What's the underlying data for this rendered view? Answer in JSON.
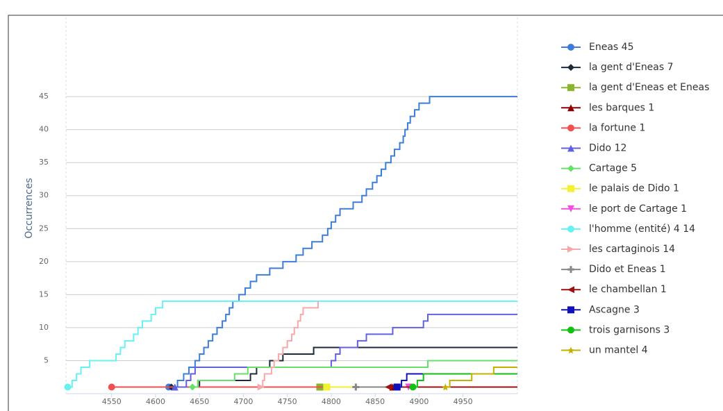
{
  "chart_data": {
    "type": "line",
    "step": true,
    "grid": true,
    "y_label": "Occurrences",
    "xlim": [
      4498,
      5012
    ],
    "ylim": [
      0,
      57
    ],
    "xticks": [
      4550,
      4600,
      4650,
      4700,
      4750,
      4800,
      4850,
      4900,
      4950
    ],
    "yticks": [
      5,
      10,
      15,
      20,
      25,
      30,
      35,
      40,
      45
    ],
    "legend": "right",
    "series": [
      {
        "name": "Eneas 45",
        "color": "#3b7dd8",
        "marker": "circle",
        "x": [
          4615,
          4625,
          4632,
          4638,
          4645,
          4650,
          4655,
          4660,
          4665,
          4670,
          4676,
          4680,
          4684,
          4688,
          4695,
          4702,
          4708,
          4715,
          4730,
          4745,
          4760,
          4768,
          4778,
          4790,
          4796,
          4800,
          4805,
          4810,
          4825,
          4835,
          4840,
          4847,
          4852,
          4857,
          4862,
          4868,
          4872,
          4878,
          4882,
          4884,
          4887,
          4890,
          4895,
          4900,
          4912,
          5012
        ],
        "values": [
          1,
          2,
          3,
          4,
          5,
          6,
          7,
          8,
          9,
          10,
          11,
          12,
          13,
          14,
          15,
          16,
          17,
          18,
          19,
          20,
          21,
          22,
          23,
          24,
          25,
          26,
          27,
          28,
          29,
          30,
          31,
          32,
          33,
          34,
          35,
          36,
          37,
          38,
          39,
          40,
          41,
          42,
          43,
          44,
          45,
          45
        ]
      },
      {
        "name": "la gent d'Eneas 7",
        "color": "#1c2a3b",
        "marker": "diamond",
        "x": [
          4618,
          4650,
          4708,
          4715,
          4730,
          4745,
          4780,
          5012
        ],
        "values": [
          1,
          2,
          3,
          4,
          5,
          6,
          7,
          7
        ]
      },
      {
        "name": "la gent d'Eneas et Eneas",
        "color": "#8ab52a",
        "marker": "square",
        "x": [
          4787,
          5012
        ],
        "values": [
          1,
          1
        ]
      },
      {
        "name": "les barques 1",
        "color": "#8b0000",
        "marker": "triangle",
        "x": [
          4870,
          5012
        ],
        "values": [
          1,
          1
        ]
      },
      {
        "name": "la fortune 1",
        "color": "#f25050",
        "marker": "circle",
        "x": [
          4550,
          4790
        ],
        "values": [
          1,
          1
        ]
      },
      {
        "name": "Dido 12",
        "color": "#6060e0",
        "marker": "triangle",
        "x": [
          4622,
          4635,
          4640,
          4645,
          4800,
          4805,
          4810,
          4830,
          4840,
          4870,
          4905,
          4910,
          5012
        ],
        "values": [
          1,
          2,
          3,
          4,
          5,
          6,
          7,
          8,
          9,
          10,
          11,
          12,
          12
        ]
      },
      {
        "name": "Cartage 5",
        "color": "#66e066",
        "marker": "diamond",
        "x": [
          4642,
          4648,
          4690,
          4705,
          4910,
          5012
        ],
        "values": [
          1,
          2,
          3,
          4,
          5,
          5
        ]
      },
      {
        "name": "le palais de Dido 1",
        "color": "#f2f230",
        "marker": "square",
        "x": [
          4795,
          5012
        ],
        "values": [
          1,
          1
        ]
      },
      {
        "name": "le port de Cartage 1",
        "color": "#f050e0",
        "marker": "triangle-down",
        "x": [
          4888,
          5012
        ],
        "values": [
          1,
          1
        ]
      },
      {
        "name": "l'homme (entité) 4 14",
        "color": "#66f2f2",
        "marker": "circle",
        "x": [
          4500,
          4505,
          4510,
          4515,
          4525,
          4555,
          4560,
          4565,
          4575,
          4580,
          4585,
          4595,
          4600,
          4608,
          5012
        ],
        "values": [
          1,
          2,
          3,
          4,
          5,
          6,
          7,
          8,
          9,
          10,
          11,
          12,
          13,
          14,
          14
        ]
      },
      {
        "name": "les cartaginois 14",
        "color": "#f8a8a8",
        "marker": "triangle-right",
        "x": [
          4720,
          4722,
          4724,
          4732,
          4735,
          4740,
          4745,
          4750,
          4755,
          4758,
          4762,
          4765,
          4768,
          4785
        ],
        "values": [
          1,
          2,
          3,
          4,
          5,
          6,
          7,
          8,
          9,
          10,
          11,
          12,
          13,
          14
        ]
      },
      {
        "name": "Dido et Eneas 1",
        "color": "#888888",
        "marker": "plus",
        "x": [
          4828,
          5012
        ],
        "values": [
          1,
          1
        ]
      },
      {
        "name": "le chambellan 1",
        "color": "#a01010",
        "marker": "triangle-left",
        "x": [
          4865,
          5012
        ],
        "values": [
          1,
          1
        ]
      },
      {
        "name": "Ascagne 3",
        "color": "#1010c0",
        "marker": "square",
        "x": [
          4875,
          4880,
          4886,
          5012
        ],
        "values": [
          1,
          2,
          3,
          3
        ]
      },
      {
        "name": "trois garnisons 3",
        "color": "#12c012",
        "marker": "circle",
        "x": [
          4893,
          4898,
          4905,
          5012
        ],
        "values": [
          1,
          2,
          3,
          3
        ]
      },
      {
        "name": "un mantel 4",
        "color": "#c4b000",
        "marker": "star",
        "x": [
          4930,
          4935,
          4960,
          4985,
          5012
        ],
        "values": [
          1,
          2,
          3,
          4,
          4
        ]
      }
    ]
  }
}
